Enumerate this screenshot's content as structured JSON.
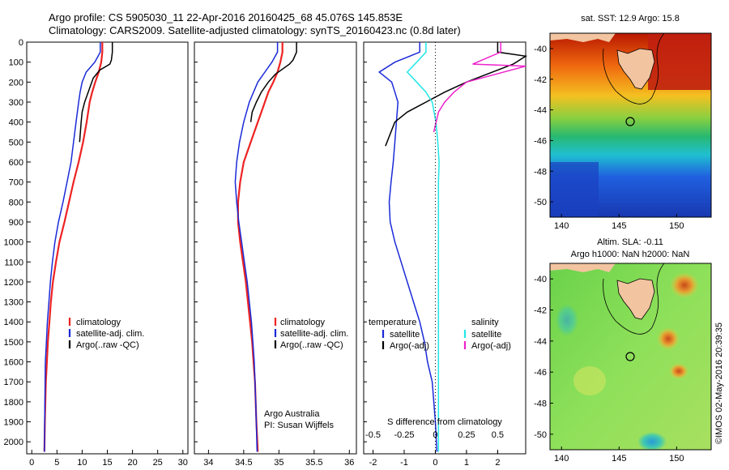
{
  "header": {
    "title_line1": "Argo profile: CS 5905030_11 22-Apr-2016 20160425_68 45.076S 145.853E",
    "title_line2": "Climatology: CARS2009. Satellite-adjusted climatology: synTS_20160423.nc (0.8d later)"
  },
  "side_stamp": "©IMOS 02-May-2016 20:39:35",
  "colors": {
    "climatology": "#ee2222",
    "satellite": "#1a2ad8",
    "argo": "#000000",
    "sal_satellite": "#22e6e6",
    "argo_adj_sal": "#ee22cc"
  },
  "chart_data": [
    {
      "type": "line",
      "panel": "temperature",
      "xlabel": "temperature (deg C)",
      "xlim": [
        -1,
        31
      ],
      "xticks": [
        "0",
        "5",
        "10",
        "15",
        "20",
        "25",
        "30"
      ],
      "ylim": [
        0,
        2060
      ],
      "yticks": [
        "0",
        "100",
        "200",
        "300",
        "400",
        "500",
        "600",
        "700",
        "800",
        "900",
        "1000",
        "1100",
        "1200",
        "1300",
        "1400",
        "1500",
        "1600",
        "1700",
        "1800",
        "1900",
        "2000"
      ],
      "legend": [
        "climatology",
        "satellite-adj. clim.",
        "Argo(..raw -QC)"
      ],
      "series": [
        {
          "name": "climatology",
          "x": [
            14.0,
            14.0,
            13.8,
            13.3,
            12.6,
            12.0,
            11.5,
            10.9,
            10.2,
            9.3,
            8.3,
            7.4,
            6.5,
            5.5,
            4.8,
            4.2,
            3.8,
            3.5,
            3.2,
            3.0,
            2.8,
            2.6,
            2.5
          ],
          "y": [
            0,
            50,
            100,
            150,
            200,
            250,
            300,
            400,
            500,
            600,
            700,
            800,
            900,
            1000,
            1100,
            1200,
            1300,
            1400,
            1500,
            1600,
            1700,
            1900,
            2050
          ]
        },
        {
          "name": "satellite-adj. clim.",
          "x": [
            13.6,
            13.6,
            12.5,
            10.8,
            10.0,
            9.6,
            9.3,
            8.8,
            8.3,
            7.8,
            7.0,
            6.2,
            5.3,
            4.6,
            4.1,
            3.7,
            3.4,
            3.1,
            2.9,
            2.7,
            2.6,
            2.5
          ],
          "y": [
            0,
            50,
            100,
            150,
            200,
            250,
            300,
            400,
            500,
            600,
            700,
            800,
            900,
            1000,
            1100,
            1200,
            1300,
            1400,
            1500,
            1600,
            1800,
            2050
          ]
        },
        {
          "name": "Argo(..raw -QC)",
          "x": [
            16.0,
            16.0,
            15.8,
            15.5,
            13.5,
            12.2,
            11.2,
            10.5,
            10.0,
            9.8,
            9.5
          ],
          "y": [
            0,
            50,
            90,
            110,
            140,
            180,
            250,
            300,
            350,
            400,
            500
          ]
        }
      ]
    },
    {
      "type": "line",
      "panel": "salinity",
      "xlabel": "salinity",
      "xlim": [
        33.8,
        36.1
      ],
      "xticks": [
        "34",
        "34.5",
        "35",
        "35.5",
        "36"
      ],
      "ylim": [
        0,
        2060
      ],
      "legend": [
        "climatology",
        "satellite-adj. clim.",
        "Argo(..raw -QC)"
      ],
      "annotation": [
        "Argo Australia",
        "PI: Susan Wijffels"
      ],
      "series": [
        {
          "name": "climatology",
          "x": [
            35.05,
            35.05,
            35.02,
            34.98,
            34.92,
            34.85,
            34.8,
            34.7,
            34.6,
            34.5,
            34.45,
            34.42,
            34.42,
            34.45,
            34.49,
            34.53,
            34.56,
            34.59,
            34.62,
            34.64,
            34.66,
            34.68,
            34.7
          ],
          "y": [
            0,
            50,
            100,
            150,
            200,
            250,
            300,
            400,
            500,
            600,
            700,
            800,
            900,
            1000,
            1100,
            1200,
            1300,
            1400,
            1500,
            1600,
            1700,
            1900,
            2050
          ]
        },
        {
          "name": "satellite-adj. clim.",
          "x": [
            34.98,
            34.98,
            34.9,
            34.8,
            34.7,
            34.64,
            34.58,
            34.5,
            34.44,
            34.4,
            34.38,
            34.4,
            34.43,
            34.47,
            34.51,
            34.55,
            34.58,
            34.61,
            34.63,
            34.65,
            34.67,
            34.69
          ],
          "y": [
            0,
            50,
            100,
            150,
            200,
            250,
            300,
            400,
            500,
            600,
            700,
            800,
            900,
            1000,
            1100,
            1200,
            1300,
            1400,
            1500,
            1600,
            1800,
            2050
          ]
        },
        {
          "name": "Argo(..raw -QC)",
          "x": [
            35.25,
            35.25,
            35.2,
            35.15,
            34.95,
            34.85,
            34.75,
            34.68,
            34.62,
            34.6
          ],
          "y": [
            0,
            50,
            90,
            110,
            160,
            200,
            250,
            300,
            350,
            400
          ]
        }
      ]
    },
    {
      "type": "line",
      "panel": "difference",
      "xlabel": "T difference from climatology",
      "xlabel_top": "S difference from climatology",
      "xlim": [
        -2.3,
        2.9
      ],
      "xticks": [
        "-2",
        "-1",
        "0",
        "1",
        "2"
      ],
      "s_xticks": [
        "-0.5",
        "-0.25",
        "0",
        "0.25",
        "0.5"
      ],
      "ylim": [
        0,
        2060
      ],
      "legend_left_title": "temperature",
      "legend_right_title": "salinity",
      "legend": [
        "satellite",
        "Argo(-adj)",
        "satellite",
        "Argo(-adj)"
      ],
      "series": [
        {
          "name": "satellite",
          "x": [
            -0.5,
            -0.5,
            -1.3,
            -1.8,
            -1.4,
            -1.3,
            -1.2,
            -1.25,
            -1.3,
            -1.35,
            -1.42,
            -1.48,
            -1.45,
            -1.3,
            -1.1,
            -0.9,
            -0.7,
            -0.5,
            -0.35,
            -0.25,
            -0.1,
            0,
            0.05
          ],
          "y": [
            0,
            50,
            100,
            150,
            200,
            250,
            300,
            400,
            500,
            600,
            700,
            800,
            900,
            1000,
            1100,
            1200,
            1300,
            1400,
            1500,
            1600,
            1700,
            1900,
            2050
          ]
        },
        {
          "name": "Argo(-adj)",
          "x": [
            2.0,
            2.0,
            2.9,
            2.5,
            1.0,
            0.3,
            -0.3,
            -0.9,
            -1.3,
            -1.6
          ],
          "y": [
            0,
            50,
            70,
            110,
            200,
            250,
            300,
            350,
            400,
            520
          ]
        },
        {
          "name": "satellite",
          "x": [
            -0.3,
            -0.3,
            -0.6,
            -0.9,
            -0.6,
            -0.3,
            -0.1,
            0.02,
            0.08,
            0.12,
            0.1,
            0.1,
            0.1,
            0.1,
            0.1,
            0.1,
            0.1,
            0.1,
            0.1,
            0.1,
            0.1
          ],
          "y": [
            0,
            50,
            100,
            150,
            200,
            250,
            300,
            400,
            500,
            600,
            700,
            800,
            900,
            1000,
            1100,
            1200,
            1300,
            1500,
            1700,
            1900,
            2050
          ]
        },
        {
          "name": "Argo(-adj)",
          "x": [
            2.1,
            2.1,
            1.2,
            2.9,
            1.0,
            0.6,
            0.3,
            0.1,
            -0.05
          ],
          "y": [
            0,
            50,
            110,
            120,
            200,
            250,
            300,
            350,
            450
          ]
        }
      ]
    },
    {
      "type": "heatmap",
      "panel": "sst-map",
      "title": "sat. SST: 12.9 Argo: 15.8",
      "xticks": [
        "140",
        "145",
        "150"
      ],
      "yticks": [
        "-40",
        "-42",
        "-44",
        "-46",
        "-48",
        "-50"
      ],
      "xlim": [
        139,
        153
      ],
      "ylim": [
        -51,
        -39
      ],
      "marker": {
        "lon": 145.853,
        "lat": -45.076
      }
    },
    {
      "type": "heatmap",
      "panel": "sla-map",
      "title": "Altim. SLA: -0.11",
      "subtitle": "Argo h1000: NaN h2000: NaN",
      "xticks": [
        "140",
        "145",
        "150"
      ],
      "yticks": [
        "-40",
        "-42",
        "-44",
        "-46",
        "-48",
        "-50"
      ],
      "xlim": [
        139,
        153
      ],
      "ylim": [
        -51,
        -39
      ],
      "marker": {
        "lon": 145.853,
        "lat": -45.076
      }
    }
  ]
}
